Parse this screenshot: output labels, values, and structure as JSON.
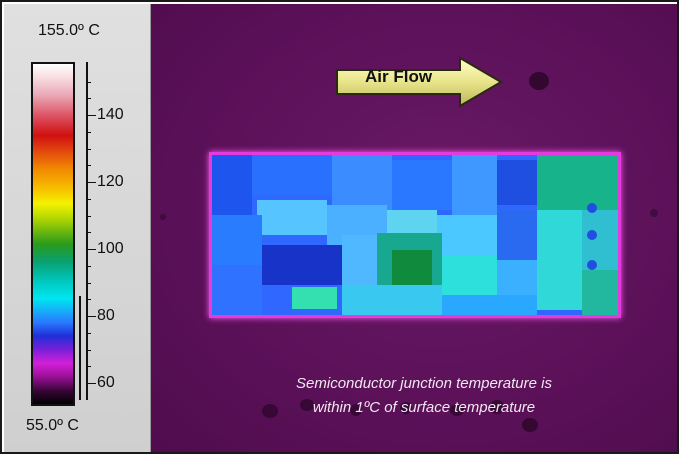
{
  "scale": {
    "max_label": "155.0º C",
    "min_label": "55.0º C",
    "ticks": [
      "140",
      "120",
      "100",
      "80",
      "60"
    ],
    "colors": {
      "top": "#ffffff",
      "hot": "#cf1010",
      "mid": "#2a9a1a",
      "cool": "#00e6f0",
      "cold": "#1f2fd8",
      "low": "#d21fd8",
      "bottom": "#000000"
    }
  },
  "arrow": {
    "label": "Air Flow",
    "icon": "arrow-right-icon"
  },
  "caption": {
    "line1": "Semiconductor junction temperature is",
    "line2": "within 1ºC of surface temperature"
  },
  "colors": {
    "background": "#5c1159",
    "plate_border": "#e43ae0"
  }
}
